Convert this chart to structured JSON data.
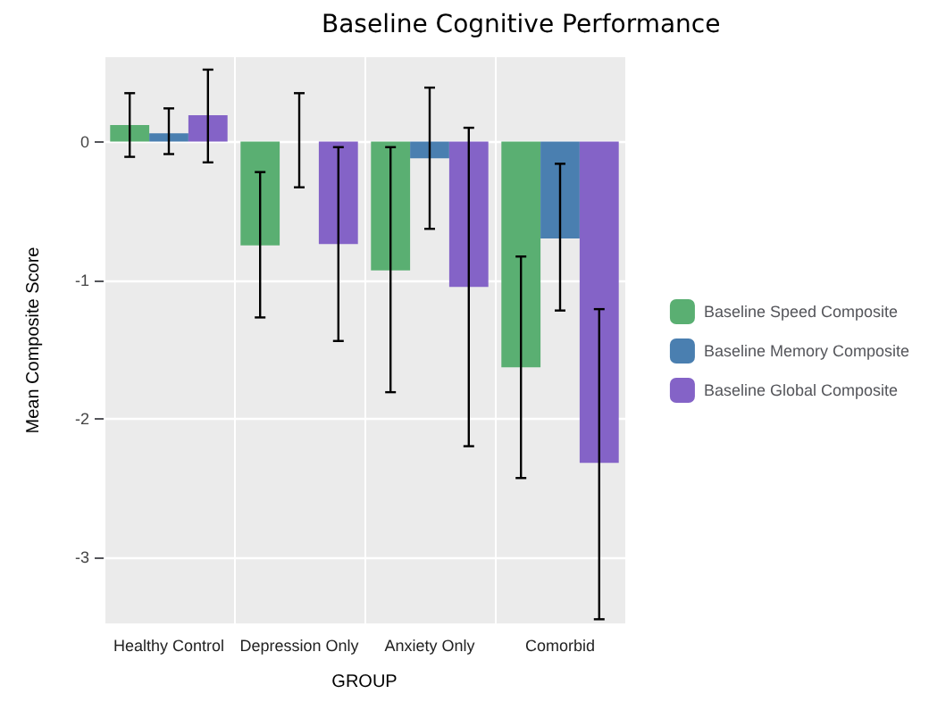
{
  "chart_data": {
    "type": "bar",
    "title": "Baseline Cognitive Performance",
    "xlabel": "GROUP",
    "ylabel": "Mean Composite Score",
    "categories": [
      "Healthy Control",
      "Depression Only",
      "Anxiety Only",
      "Comorbid"
    ],
    "series": [
      {
        "name": "Baseline Speed Composite",
        "color": "#5aaf72",
        "values": [
          0.12,
          -0.75,
          -0.93,
          -1.63
        ],
        "errors": [
          [
            -0.11,
            0.35
          ],
          [
            -1.27,
            -0.22
          ],
          [
            -1.81,
            -0.04
          ],
          [
            -2.43,
            -0.83
          ]
        ]
      },
      {
        "name": "Baseline Memory Composite",
        "color": "#4a7fb0",
        "values": [
          0.06,
          0.0,
          -0.12,
          -0.7
        ],
        "errors": [
          [
            -0.09,
            0.24
          ],
          [
            -0.33,
            0.35
          ],
          [
            -0.63,
            0.39
          ],
          [
            -1.22,
            -0.16
          ]
        ]
      },
      {
        "name": "Baseline Global Composite",
        "color": "#8463c7",
        "values": [
          0.19,
          -0.74,
          -1.05,
          -2.32
        ],
        "errors": [
          [
            -0.15,
            0.52
          ],
          [
            -1.44,
            -0.04
          ],
          [
            -2.2,
            0.1
          ],
          [
            -3.45,
            -1.21
          ]
        ]
      }
    ],
    "ylim": [
      -3.48,
      0.61
    ],
    "yticks": [
      -3,
      -2,
      -1,
      0
    ],
    "grid": true,
    "legend": "right"
  }
}
